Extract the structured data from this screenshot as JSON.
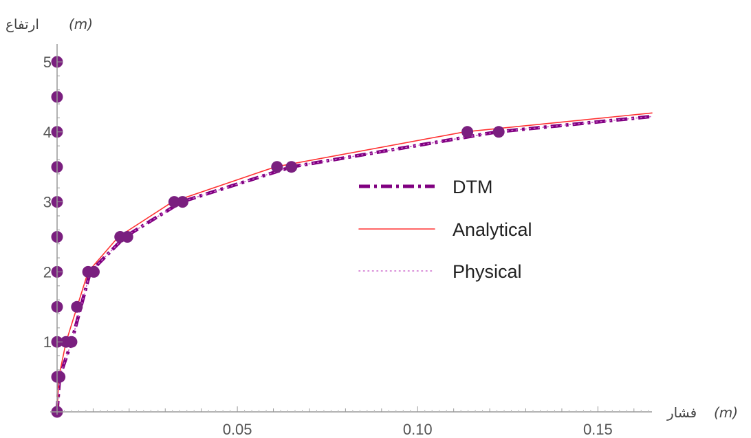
{
  "chart_data": {
    "type": "line",
    "x_axis": {
      "label_text": "فشار",
      "label_unit": "(m)",
      "range": [
        0,
        0.165
      ],
      "ticks": [
        0.05,
        0.1,
        0.15
      ],
      "tick_labels": [
        "0.05",
        "0.10",
        "0.15"
      ]
    },
    "y_axis": {
      "label_text": "ارتفاع",
      "label_unit": "(m)",
      "range": [
        0,
        5.2
      ],
      "ticks": [
        1,
        2,
        3,
        4,
        5
      ],
      "tick_labels": [
        "1",
        "2",
        "3",
        "4",
        "5"
      ]
    },
    "grid": false,
    "legend": {
      "placement": "center-right",
      "entries": [
        {
          "name": "DTM",
          "style": "dash-dot",
          "color": "#800080"
        },
        {
          "name": "Analytical",
          "style": "solid",
          "color": "#ff3333"
        },
        {
          "name": "Physical",
          "style": "dotted",
          "color": "#cc66cc"
        }
      ]
    },
    "series": [
      {
        "name": "DTM",
        "style": "dash-dot",
        "color": "#800080",
        "x": [
          0,
          0.0007,
          0.004,
          0.0092,
          0.0188,
          0.0345,
          0.065,
          0.122,
          0.165
        ],
        "y": [
          0,
          0.5,
          1.0,
          2.0,
          2.5,
          3.0,
          3.5,
          4.0,
          4.22
        ]
      },
      {
        "name": "Analytical",
        "style": "solid",
        "color": "#ff3333",
        "x": [
          0,
          0.0005,
          0.0025,
          0.0086,
          0.017,
          0.032,
          0.0605,
          0.113,
          0.165
        ],
        "y": [
          0,
          0.5,
          1.0,
          2.0,
          2.5,
          3.0,
          3.5,
          4.0,
          4.27
        ]
      },
      {
        "name": "Physical",
        "style": "dotted",
        "color": "#cc66cc",
        "x": [
          0,
          0.0007,
          0.004,
          0.0092,
          0.0188,
          0.0345,
          0.065,
          0.122,
          0.165
        ],
        "y": [
          0,
          0.5,
          1.0,
          2.0,
          2.5,
          3.0,
          3.5,
          4.0,
          4.22
        ]
      }
    ],
    "markers": {
      "color": "#7a1f7f",
      "points": [
        {
          "x": 0,
          "y": 0
        },
        {
          "x": 0,
          "y": 0.5
        },
        {
          "x": 0,
          "y": 1.0
        },
        {
          "x": 0,
          "y": 1.5
        },
        {
          "x": 0,
          "y": 2.0
        },
        {
          "x": 0,
          "y": 2.5
        },
        {
          "x": 0,
          "y": 3.0
        },
        {
          "x": 0,
          "y": 3.5
        },
        {
          "x": 0,
          "y": 4.0
        },
        {
          "x": 0,
          "y": 4.5
        },
        {
          "x": 0,
          "y": 5.0
        },
        {
          "x": 0.0005,
          "y": 0.5
        },
        {
          "x": 0.0007,
          "y": 0.5
        },
        {
          "x": 0.0025,
          "y": 1.0
        },
        {
          "x": 0.004,
          "y": 1.0
        },
        {
          "x": 0.0055,
          "y": 1.5
        },
        {
          "x": 0.0086,
          "y": 2.0
        },
        {
          "x": 0.0102,
          "y": 2.0
        },
        {
          "x": 0.0175,
          "y": 2.5
        },
        {
          "x": 0.0195,
          "y": 2.5
        },
        {
          "x": 0.0325,
          "y": 3.0
        },
        {
          "x": 0.0348,
          "y": 3.0
        },
        {
          "x": 0.061,
          "y": 3.5
        },
        {
          "x": 0.065,
          "y": 3.5
        },
        {
          "x": 0.1138,
          "y": 4.0
        },
        {
          "x": 0.1225,
          "y": 4.0
        }
      ]
    }
  }
}
